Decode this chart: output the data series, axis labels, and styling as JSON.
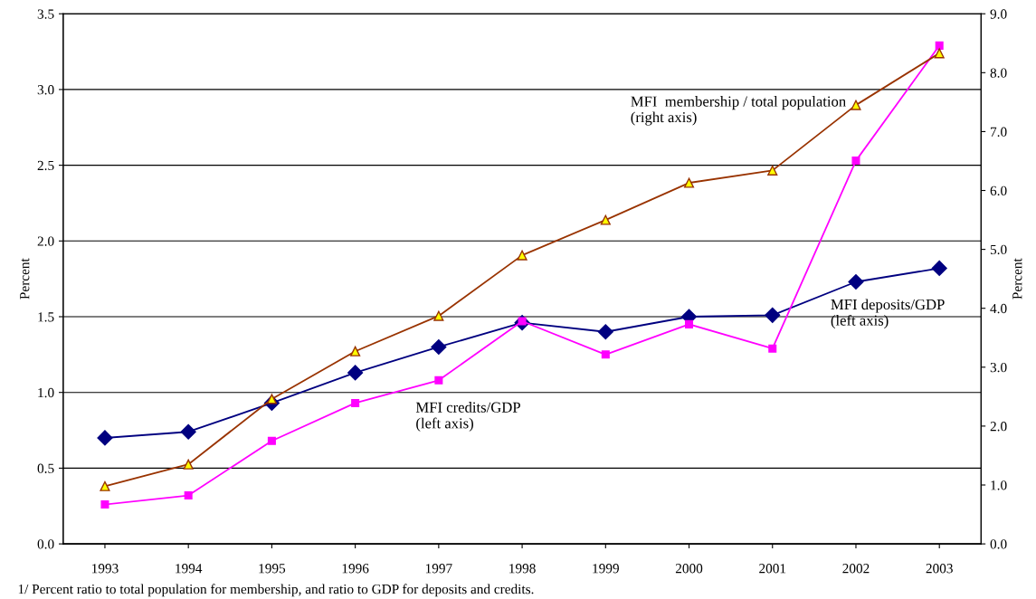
{
  "chart_data": {
    "type": "line",
    "x": [
      1993,
      1994,
      1995,
      1996,
      1997,
      1998,
      1999,
      2000,
      2001,
      2002,
      2003
    ],
    "series": [
      {
        "color": "#000080",
        "marker": "diamond",
        "values": [
          0.7,
          0.74,
          0.93,
          1.13,
          1.3,
          1.46,
          1.4,
          1.5,
          1.51,
          1.73,
          1.82
        ]
      },
      {
        "color": "#ff00ff",
        "marker": "square",
        "values": [
          0.26,
          0.32,
          0.68,
          0.93,
          1.08,
          1.47,
          1.25,
          1.45,
          1.29,
          2.53,
          3.29
        ]
      },
      {
        "color": "#993300",
        "marker": "triangle",
        "axis": "y2",
        "values": [
          0.98,
          1.35,
          2.46,
          3.27,
          3.87,
          4.9,
          5.5,
          6.13,
          6.34,
          7.45,
          8.33
        ]
      }
    ],
    "ylabel": "Percent",
    "y2label": "Percent",
    "xlim": [
      1992.5,
      2003.5
    ],
    "xticks": [
      1993,
      1994,
      1995,
      1996,
      1997,
      1998,
      1999,
      2000,
      2001,
      2002,
      2003
    ],
    "ylim": [
      0,
      3.5
    ],
    "yticks": [
      {
        "value": 0,
        "label": "0.0"
      },
      {
        "value": 0.5,
        "label": "0.5"
      },
      {
        "value": 1,
        "label": "1.0"
      },
      {
        "value": 1.5,
        "label": "1.5"
      },
      {
        "value": 2,
        "label": "2.0"
      },
      {
        "value": 2.5,
        "label": "2.5"
      },
      {
        "value": 3,
        "label": "3.0"
      },
      {
        "value": 3.5,
        "label": "3.5"
      }
    ],
    "y2lim": [
      0,
      9
    ],
    "y2ticks": [
      {
        "value": 0,
        "label": "0.0"
      },
      {
        "value": 1,
        "label": "1.0"
      },
      {
        "value": 2,
        "label": "2.0"
      },
      {
        "value": 3,
        "label": "3.0"
      },
      {
        "value": 4,
        "label": "4.0"
      },
      {
        "value": 5,
        "label": "5.0"
      },
      {
        "value": 6,
        "label": "6.0"
      },
      {
        "value": 7,
        "label": "7.0"
      },
      {
        "value": 8,
        "label": "8.0"
      },
      {
        "value": 9,
        "label": "9.0"
      }
    ],
    "grid": "y",
    "annotations": [
      "MFI  membership / total population\n(right axis)",
      "MFI deposits/GDP\n(left axis)",
      "MFI credits/GDP\n(left axis)",
      "1/ Percent ratio to total population for membership, and ratio to GDP for deposits and credits."
    ]
  }
}
